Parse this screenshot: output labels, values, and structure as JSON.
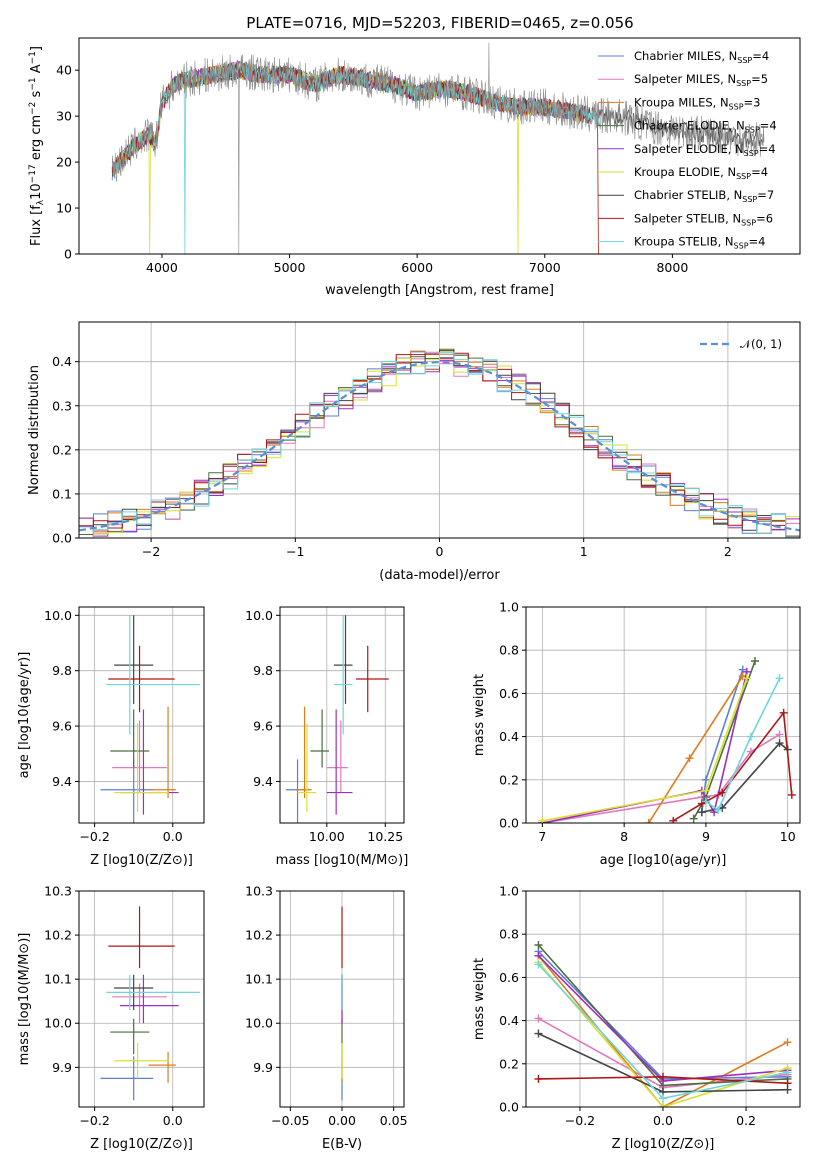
{
  "figure_title": "PLATE=0716, MJD=52203, FIBERID=0465, z=0.056",
  "colors": {
    "Chabrier MILES": "#5b7fd6",
    "Salpeter MILES": "#e377c2",
    "Kroupa MILES": "#e07a1f",
    "Chabrier ELODIE": "#4d6e3f",
    "Salpeter ELODIE": "#9b30c0",
    "Kroupa ELODIE": "#d9e030",
    "Chabrier STELIB": "#444444",
    "Salpeter STELIB": "#b01515",
    "Kroupa STELIB": "#6dd6dc"
  },
  "chart_data": [
    {
      "id": "spectrum",
      "type": "line",
      "title": "PLATE=0716, MJD=52203, FIBERID=0465, z=0.056",
      "xlabel": "wavelength [Angstrom, rest frame]",
      "ylabel": "Flux [f_λ 10^-17 erg cm^-2 s^-1 A^-1]",
      "xlim": [
        3350,
        9000
      ],
      "ylim": [
        0,
        47
      ],
      "xticks": [
        "4000",
        "5000",
        "6000",
        "7000",
        "8000"
      ],
      "yticks": [
        "0",
        "10",
        "20",
        "30",
        "40"
      ],
      "legend_placement": "upper-right",
      "series": [
        {
          "name": "Chabrier MILES",
          "nssp": "4"
        },
        {
          "name": "Salpeter MILES",
          "nssp": "5"
        },
        {
          "name": "Kroupa MILES",
          "nssp": "3"
        },
        {
          "name": "Chabrier ELODIE",
          "nssp": "4"
        },
        {
          "name": "Salpeter ELODIE",
          "nssp": "4"
        },
        {
          "name": "Kroupa ELODIE",
          "nssp": "4"
        },
        {
          "name": "Chabrier STELIB",
          "nssp": "7"
        },
        {
          "name": "Salpeter STELIB",
          "nssp": "6"
        },
        {
          "name": "Kroupa STELIB",
          "nssp": "4"
        }
      ],
      "data_continuum": [
        [
          3610,
          18
        ],
        [
          3700,
          21
        ],
        [
          3800,
          24
        ],
        [
          3900,
          26
        ],
        [
          3950,
          24
        ],
        [
          4000,
          33
        ],
        [
          4100,
          37
        ],
        [
          4200,
          38
        ],
        [
          4400,
          39
        ],
        [
          4600,
          40
        ],
        [
          4800,
          39
        ],
        [
          5000,
          39
        ],
        [
          5200,
          37
        ],
        [
          5400,
          39
        ],
        [
          5600,
          38
        ],
        [
          5800,
          37
        ],
        [
          6000,
          35
        ],
        [
          6200,
          36
        ],
        [
          6400,
          35
        ],
        [
          6600,
          33
        ],
        [
          6800,
          32
        ],
        [
          7000,
          32
        ],
        [
          7200,
          31
        ],
        [
          7400,
          30
        ],
        [
          7600,
          30
        ],
        [
          7800,
          28
        ],
        [
          8000,
          27
        ],
        [
          8300,
          26
        ],
        [
          8600,
          25
        ],
        [
          8720,
          25
        ]
      ],
      "grid": false
    },
    {
      "id": "residuals",
      "type": "area",
      "xlabel": "(data-model)/error",
      "ylabel": "Normed distribution",
      "xlim": [
        -2.5,
        2.5
      ],
      "ylim": [
        0,
        0.49
      ],
      "xticks": [
        "−2",
        "−1",
        "0",
        "1",
        "2"
      ],
      "yticks": [
        "0.0",
        "0.1",
        "0.2",
        "0.3",
        "0.4"
      ],
      "legend": "𝒩(0, 1)",
      "legend_placement": "upper-right",
      "bin_width": 0.1,
      "grid": true
    },
    {
      "id": "age-vs-Z",
      "type": "scatter",
      "xlabel": "Z [log10(Z/Z⊙)]",
      "ylabel": "age [log10(age/yr)]",
      "xlim": [
        -0.24,
        0.08
      ],
      "ylim": [
        9.25,
        10.03
      ],
      "xticks": [
        "−0.2",
        "0.0"
      ],
      "yticks": [
        "9.4",
        "9.6",
        "9.8",
        "10.0"
      ],
      "grid": true
    },
    {
      "id": "age-vs-mass",
      "type": "scatter",
      "xlabel": "mass [log10(M/M⊙)]",
      "ylabel": "",
      "xlim": [
        9.8,
        10.33
      ],
      "ylim": [
        9.25,
        10.03
      ],
      "xticks": [
        "10.00",
        "10.25"
      ],
      "yticks": [
        "9.4",
        "9.6",
        "9.8",
        "10.0"
      ],
      "grid": true
    },
    {
      "id": "weight-vs-age",
      "type": "line",
      "xlabel": "age [log10(age/yr)]",
      "ylabel": "mass weight",
      "xlim": [
        6.8,
        10.15
      ],
      "ylim": [
        0,
        1
      ],
      "xticks": [
        "7",
        "8",
        "9",
        "10"
      ],
      "yticks": [
        "0.0",
        "0.2",
        "0.4",
        "0.6",
        "0.8",
        "1.0"
      ],
      "grid": true
    },
    {
      "id": "mass-vs-Z",
      "type": "scatter",
      "xlabel": "Z [log10(Z/Z⊙)]",
      "ylabel": "mass [log10(M/M⊙)]",
      "xlim": [
        -0.24,
        0.08
      ],
      "ylim": [
        9.81,
        10.3
      ],
      "xticks": [
        "−0.2",
        "0.0"
      ],
      "yticks": [
        "9.9",
        "10.0",
        "10.1",
        "10.2",
        "10.3"
      ],
      "grid": true
    },
    {
      "id": "mass-vs-ebv",
      "type": "scatter",
      "xlabel": "E(B-V)",
      "ylabel": "",
      "xlim": [
        -0.06,
        0.06
      ],
      "ylim": [
        9.81,
        10.3
      ],
      "xticks": [
        "−0.05",
        "0.00",
        "0.05"
      ],
      "yticks": [
        "9.9",
        "10.0",
        "10.1",
        "10.2",
        "10.3"
      ],
      "grid": true
    },
    {
      "id": "weight-vs-Z",
      "type": "line",
      "xlabel": "Z [log10(Z/Z⊙)]",
      "ylabel": "mass weight",
      "xlim": [
        -0.33,
        0.33
      ],
      "ylim": [
        0,
        1
      ],
      "xticks": [
        "−0.2",
        "0.0",
        "0.2"
      ],
      "yticks": [
        "0.0",
        "0.2",
        "0.4",
        "0.6",
        "0.8",
        "1.0"
      ],
      "grid": true
    }
  ],
  "stats": {
    "Chabrier MILES": {
      "Z": [
        -0.1,
        0.085,
        0.05
      ],
      "age": [
        9.37,
        0.26,
        0.11
      ],
      "mass": [
        9.875,
        0.05,
        0.05
      ],
      "ebv": 0.0
    },
    "Salpeter MILES": {
      "Z": [
        -0.085,
        0.07,
        0.07
      ],
      "age": [
        9.45,
        0.09,
        0.17
      ],
      "mass": [
        10.06,
        0.06,
        0.03
      ],
      "ebv": 0.0
    },
    "Kroupa MILES": {
      "Z": [
        -0.012,
        0.05,
        0.02
      ],
      "age": [
        9.37,
        0.03,
        0.3
      ],
      "mass": [
        9.905,
        0.04,
        0.03
      ],
      "ebv": 0.0
    },
    "Chabrier ELODIE": {
      "Z": [
        -0.1,
        0.06,
        0.04
      ],
      "age": [
        9.51,
        0.06,
        0.15
      ],
      "mass": [
        9.98,
        0.05,
        0.03
      ],
      "ebv": 0.0
    },
    "Salpeter ELODIE": {
      "Z": [
        -0.075,
        0.06,
        0.09
      ],
      "age": [
        9.36,
        0.08,
        0.3
      ],
      "mass": [
        10.04,
        0.04,
        0.07
      ],
      "ebv": 0.0
    },
    "Kroupa ELODIE": {
      "Z": [
        -0.09,
        0.06,
        0.08
      ],
      "age": [
        9.36,
        0.07,
        0.25
      ],
      "mass": [
        9.915,
        0.04,
        0.04
      ],
      "ebv": 0.0
    },
    "Chabrier STELIB": {
      "Z": [
        -0.1,
        0.05,
        0.05
      ],
      "age": [
        9.82,
        0.14,
        0.18
      ],
      "mass": [
        10.08,
        0.05,
        0.03
      ],
      "ebv": 0.0
    },
    "Salpeter STELIB": {
      "Z": [
        -0.085,
        0.08,
        0.09
      ],
      "age": [
        9.77,
        0.12,
        0.12
      ],
      "mass": [
        10.175,
        0.05,
        0.09
      ],
      "ebv": 0.0
    },
    "Kroupa STELIB": {
      "Z": [
        -0.11,
        0.06,
        0.18
      ],
      "age": [
        9.75,
        0.18,
        0.25
      ],
      "mass": [
        10.07,
        0.04,
        0.04
      ],
      "ebv": 0.0
    }
  },
  "weights_age": {
    "Chabrier MILES": [
      [
        8.95,
        0.05
      ],
      [
        9.0,
        0.2
      ],
      [
        9.45,
        0.71
      ]
    ],
    "Salpeter MILES": [
      [
        7.0,
        0.0
      ],
      [
        8.95,
        0.12
      ],
      [
        9.15,
        0.13
      ],
      [
        9.55,
        0.33
      ],
      [
        9.9,
        0.41
      ]
    ],
    "Kroupa MILES": [
      [
        8.3,
        0.0
      ],
      [
        8.8,
        0.3
      ],
      [
        9.45,
        0.68
      ]
    ],
    "Chabrier ELODIE": [
      [
        8.85,
        0.02
      ],
      [
        9.0,
        0.12
      ],
      [
        9.6,
        0.75
      ]
    ],
    "Salpeter ELODIE": [
      [
        7.0,
        0.0
      ],
      [
        8.95,
        0.15
      ],
      [
        9.1,
        0.05
      ],
      [
        9.5,
        0.7
      ]
    ],
    "Kroupa ELODIE": [
      [
        7.0,
        0.01
      ],
      [
        9.0,
        0.15
      ],
      [
        9.5,
        0.67
      ]
    ],
    "Chabrier STELIB": [
      [
        8.95,
        0.05
      ],
      [
        9.2,
        0.07
      ],
      [
        9.9,
        0.37
      ],
      [
        10.0,
        0.34
      ]
    ],
    "Salpeter STELIB": [
      [
        8.6,
        0.01
      ],
      [
        8.95,
        0.09
      ],
      [
        9.2,
        0.14
      ],
      [
        9.95,
        0.51
      ],
      [
        10.05,
        0.13
      ]
    ],
    "Kroupa STELIB": [
      [
        9.0,
        0.1
      ],
      [
        9.15,
        0.06
      ],
      [
        9.55,
        0.4
      ],
      [
        9.9,
        0.67
      ]
    ]
  },
  "weights_Z": {
    "Chabrier MILES": [
      [
        -0.3,
        0.72
      ],
      [
        0.0,
        0.13
      ],
      [
        0.3,
        0.14
      ]
    ],
    "Salpeter MILES": [
      [
        -0.3,
        0.41
      ],
      [
        0.0,
        0.09
      ],
      [
        0.3,
        0.15
      ]
    ],
    "Kroupa MILES": [
      [
        -0.3,
        0.7
      ],
      [
        0.0,
        0.0
      ],
      [
        0.3,
        0.3
      ]
    ],
    "Chabrier ELODIE": [
      [
        -0.3,
        0.75
      ],
      [
        0.0,
        0.1
      ],
      [
        0.3,
        0.13
      ]
    ],
    "Salpeter ELODIE": [
      [
        -0.3,
        0.7
      ],
      [
        0.0,
        0.12
      ],
      [
        0.3,
        0.17
      ]
    ],
    "Kroupa ELODIE": [
      [
        -0.3,
        0.67
      ],
      [
        0.0,
        0.0
      ],
      [
        0.3,
        0.18
      ]
    ],
    "Chabrier STELIB": [
      [
        -0.3,
        0.34
      ],
      [
        0.0,
        0.07
      ],
      [
        0.3,
        0.08
      ]
    ],
    "Salpeter STELIB": [
      [
        -0.3,
        0.13
      ],
      [
        0.0,
        0.14
      ],
      [
        0.3,
        0.11
      ]
    ],
    "Kroupa STELIB": [
      [
        -0.3,
        0.66
      ],
      [
        0.0,
        0.04
      ],
      [
        0.3,
        0.16
      ]
    ]
  }
}
